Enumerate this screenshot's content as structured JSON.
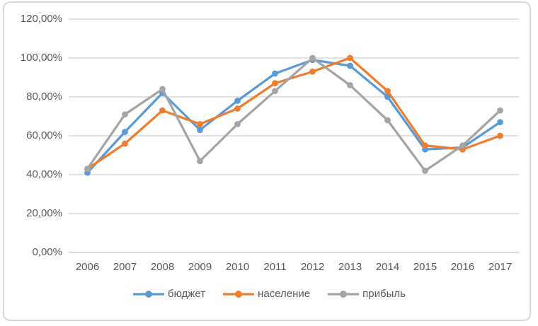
{
  "chart_data": {
    "type": "line",
    "title": "",
    "xlabel": "",
    "ylabel": "",
    "units": "percent",
    "categories": [
      "2006",
      "2007",
      "2008",
      "2009",
      "2010",
      "2011",
      "2012",
      "2013",
      "2014",
      "2015",
      "2016",
      "2017"
    ],
    "series": [
      {
        "name": "бюджет",
        "slug": "budget",
        "color": "#5B9BD5",
        "values": [
          41,
          62,
          82,
          63,
          78,
          92,
          99,
          96,
          80,
          53,
          54,
          67
        ]
      },
      {
        "name": "население",
        "slug": "population",
        "color": "#ED7D31",
        "values": [
          43,
          56,
          73,
          66,
          74,
          87,
          93,
          100,
          83,
          55,
          53,
          60
        ]
      },
      {
        "name": "прибыль",
        "slug": "profit",
        "color": "#A5A5A5",
        "values": [
          43,
          71,
          84,
          47,
          66,
          83,
          100,
          86,
          68,
          42,
          55,
          73
        ]
      }
    ],
    "ylim": [
      0,
      120
    ],
    "yticks": [
      {
        "value": 120,
        "label": "120,00%"
      },
      {
        "value": 100,
        "label": "100,00%"
      },
      {
        "value": 80,
        "label": "80,00%"
      },
      {
        "value": 60,
        "label": "60,00%"
      },
      {
        "value": 40,
        "label": "40,00%"
      },
      {
        "value": 20,
        "label": "20,00%"
      },
      {
        "value": 0,
        "label": "0,00%"
      }
    ],
    "grid": true,
    "legend_position": "bottom"
  },
  "colors": {
    "gridline": "#d9d9d9",
    "axis_line": "#d0d0d0",
    "axis_text": "#595959",
    "frame_border": "#d9d9d9",
    "background": "#ffffff"
  }
}
